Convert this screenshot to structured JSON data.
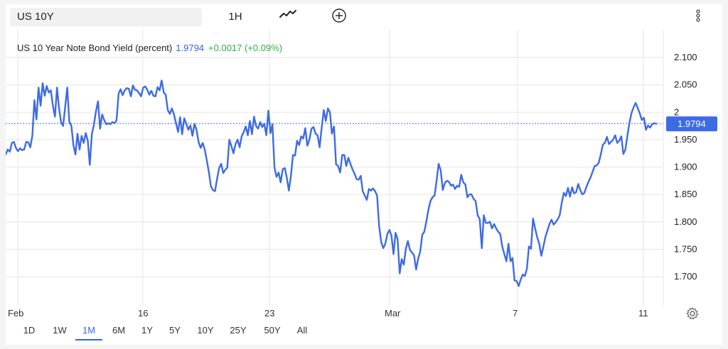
{
  "toolbar": {
    "symbol": "US 10Y",
    "interval": "1H",
    "chart_type_icon": "line-chart-icon",
    "add_icon": "plus-circle-icon",
    "more_icon": "vertical-dots-icon"
  },
  "title": {
    "label": "US 10 Year Note Bond Yield (percent)",
    "value": "1.9794",
    "change": "+0.0017 (+0.09%)"
  },
  "ranges": [
    "1D",
    "1W",
    "1M",
    "6M",
    "1Y",
    "5Y",
    "10Y",
    "25Y",
    "50Y",
    "All"
  ],
  "active_range": "1M",
  "settings_icon": "gear-icon",
  "colors": {
    "line": "#3d6be4",
    "up": "#2eae44",
    "label_bg": "#3d6be4",
    "grid": "#e6e6e6"
  },
  "chart_data": {
    "type": "line",
    "series": [
      {
        "values": [
          1.923,
          1.932,
          1.928,
          1.944,
          1.946,
          1.935,
          1.929,
          1.934,
          1.931,
          1.932,
          1.946,
          1.945,
          1.936,
          1.957,
          2.022,
          1.987,
          2.045,
          2.012,
          2.053,
          2.03,
          2.048,
          2.036,
          2.04,
          2.012,
          1.992,
          2.045,
          2.008,
          1.982,
          1.975,
          2.01,
          2.045,
          1.983,
          1.975,
          1.94,
          1.923,
          1.961,
          1.932,
          1.957,
          1.944,
          1.962,
          1.948,
          1.904,
          1.96,
          1.977,
          2.002,
          2.02,
          1.97,
          1.996,
          1.986,
          1.978,
          1.98,
          1.978,
          1.982,
          1.98,
          1.985,
          2.034,
          2.042,
          2.031,
          2.04,
          2.044,
          2.043,
          2.029,
          2.049,
          2.041,
          2.04,
          2.035,
          2.029,
          2.045,
          2.047,
          2.041,
          2.032,
          2.039,
          2.03,
          2.029,
          2.046,
          2.04,
          2.058,
          2.036,
          2.032,
          2.004,
          1.997,
          2.007,
          1.996,
          1.98,
          1.964,
          1.991,
          1.96,
          1.989,
          1.979,
          1.968,
          1.976,
          1.957,
          1.979,
          1.968,
          1.946,
          1.935,
          1.944,
          1.932,
          1.912,
          1.891,
          1.865,
          1.858,
          1.856,
          1.878,
          1.898,
          1.906,
          1.889,
          1.895,
          1.899,
          1.95,
          1.938,
          1.925,
          1.942,
          1.95,
          1.936,
          1.956,
          1.964,
          1.974,
          1.958,
          1.984,
          1.96,
          1.992,
          1.975,
          1.97,
          1.982,
          1.973,
          1.979,
          1.958,
          2.003,
          1.962,
          1.978,
          1.899,
          1.882,
          1.89,
          1.872,
          1.896,
          1.898,
          1.881,
          1.857,
          1.884,
          1.922,
          1.921,
          1.948,
          1.94,
          1.956,
          1.952,
          1.971,
          1.939,
          1.95,
          1.97,
          1.973,
          1.961,
          1.958,
          1.936,
          1.972,
          2.004,
          1.984,
          2.007,
          2.0,
          1.961,
          1.974,
          1.905,
          1.902,
          1.89,
          1.922,
          1.922,
          1.902,
          1.917,
          1.906,
          1.896,
          1.888,
          1.878,
          1.877,
          1.884,
          1.856,
          1.848,
          1.84,
          1.86,
          1.857,
          1.861,
          1.856,
          1.848,
          1.792,
          1.763,
          1.752,
          1.76,
          1.778,
          1.785,
          1.775,
          1.741,
          1.78,
          1.768,
          1.706,
          1.732,
          1.722,
          1.751,
          1.765,
          1.749,
          1.744,
          1.739,
          1.713,
          1.733,
          1.746,
          1.776,
          1.782,
          1.801,
          1.822,
          1.838,
          1.845,
          1.848,
          1.876,
          1.906,
          1.894,
          1.858,
          1.871,
          1.875,
          1.873,
          1.866,
          1.868,
          1.86,
          1.866,
          1.864,
          1.886,
          1.872,
          1.868,
          1.845,
          1.85,
          1.85,
          1.842,
          1.838,
          1.812,
          1.805,
          1.752,
          1.812,
          1.798,
          1.798,
          1.8,
          1.788,
          1.796,
          1.788,
          1.782,
          1.778,
          1.755,
          1.741,
          1.728,
          1.76,
          1.728,
          1.734,
          1.693,
          1.692,
          1.683,
          1.695,
          1.704,
          1.701,
          1.715,
          1.755,
          1.751,
          1.806,
          1.788,
          1.772,
          1.76,
          1.738,
          1.754,
          1.772,
          1.784,
          1.796,
          1.804,
          1.795,
          1.799,
          1.805,
          1.812,
          1.835,
          1.853,
          1.847,
          1.862,
          1.846,
          1.863,
          1.852,
          1.854,
          1.869,
          1.858,
          1.85,
          1.853,
          1.864,
          1.873,
          1.881,
          1.891,
          1.902,
          1.903,
          1.908,
          1.923,
          1.941,
          1.944,
          1.955,
          1.942,
          1.946,
          1.95,
          1.958,
          1.944,
          1.948,
          1.956,
          1.924,
          1.932,
          1.958,
          1.982,
          1.999,
          2.009,
          2.017,
          2.008,
          1.998,
          1.986,
          1.99,
          1.968,
          1.976,
          1.972,
          1.978,
          1.98,
          1.979
        ]
      }
    ],
    "x_ticks": [
      "Feb",
      "16",
      "23",
      "Mar",
      "7",
      "11"
    ],
    "y_ticks": [
      "2.100",
      "2.050",
      "2",
      "1.950",
      "1.900",
      "1.850",
      "1.800",
      "1.750",
      "1.700"
    ],
    "ylim": [
      1.66,
      2.11
    ],
    "last_value_label": "1.9794",
    "last_value": 1.9794,
    "grid": true
  }
}
